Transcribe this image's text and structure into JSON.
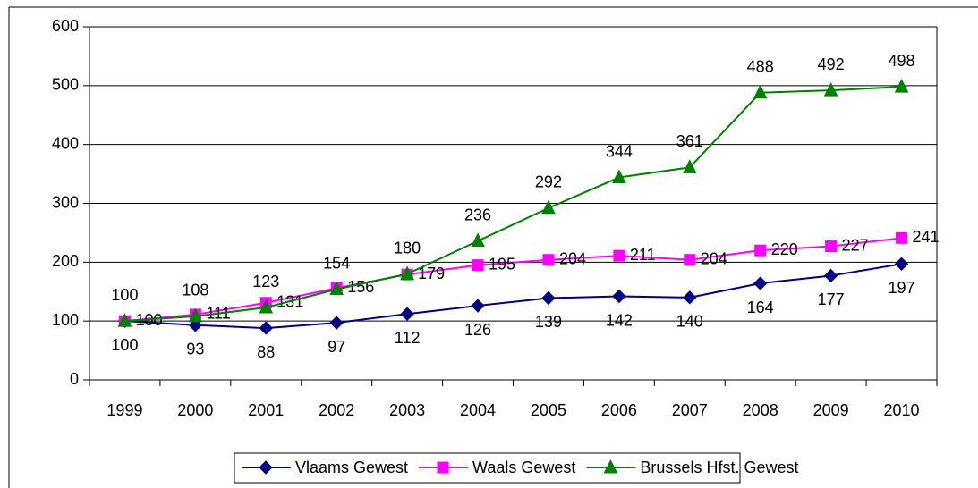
{
  "chart_data": {
    "type": "line",
    "categories": [
      "1999",
      "2000",
      "2001",
      "2002",
      "2003",
      "2004",
      "2005",
      "2006",
      "2007",
      "2008",
      "2009",
      "2010"
    ],
    "series": [
      {
        "name": "Vlaams Gewest",
        "color": "#000080",
        "marker": "diamond",
        "label_position": "below",
        "values": [
          100,
          93,
          88,
          97,
          112,
          126,
          139,
          142,
          140,
          164,
          177,
          197
        ]
      },
      {
        "name": "Waals Gewest",
        "color": "#ff00ff",
        "marker": "square",
        "label_position": "right",
        "values": [
          100,
          111,
          131,
          156,
          179,
          195,
          204,
          211,
          204,
          220,
          227,
          241
        ]
      },
      {
        "name": "Brussels Hfst. Gewest",
        "color": "#008000",
        "marker": "triangle",
        "label_position": "above",
        "values": [
          100,
          108,
          123,
          154,
          180,
          236,
          292,
          344,
          361,
          488,
          492,
          498
        ]
      }
    ],
    "ylim": [
      0,
      600
    ],
    "yticks": [
      0,
      100,
      200,
      300,
      400,
      500,
      600
    ],
    "grid": true,
    "legend": "bottom"
  }
}
